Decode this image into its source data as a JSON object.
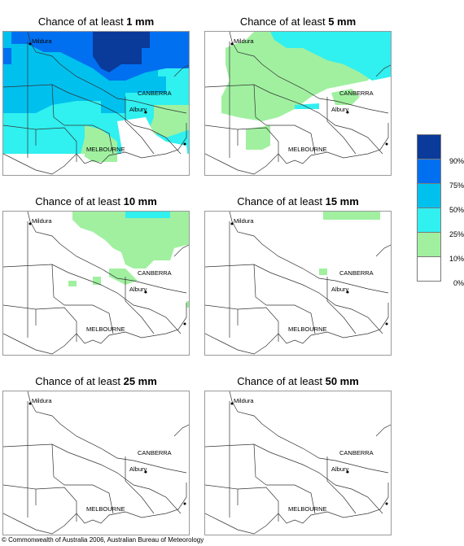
{
  "panels": [
    {
      "prefix": "Chance of at least ",
      "amount": "1 mm"
    },
    {
      "prefix": "Chance of at least ",
      "amount": "5 mm"
    },
    {
      "prefix": "Chance of at least ",
      "amount": "10 mm"
    },
    {
      "prefix": "Chance of at least ",
      "amount": "15 mm"
    },
    {
      "prefix": "Chance of at least ",
      "amount": "25 mm"
    },
    {
      "prefix": "Chance of at least ",
      "amount": "50 mm"
    }
  ],
  "places": {
    "mildura": "Mildura",
    "canberra": "CANBERRA",
    "albury": "Albury",
    "melbourne": "MELBOURNE"
  },
  "legend": {
    "labels": [
      "90%",
      "75%",
      "50%",
      "25%",
      "10%",
      "0%"
    ],
    "colors": [
      "#0a3a9a",
      "#0070f0",
      "#00c0ee",
      "#30f0f0",
      "#a0f0a0",
      "#ffffff"
    ]
  },
  "map_colors": {
    "gt10": "#a0f0a0",
    "gt25": "#30f0f0",
    "gt50": "#00c0ee",
    "gt75": "#0070f0"
  },
  "copyright": "© Commonwealth of Australia 2006, Australian Bureau of Meteorology"
}
